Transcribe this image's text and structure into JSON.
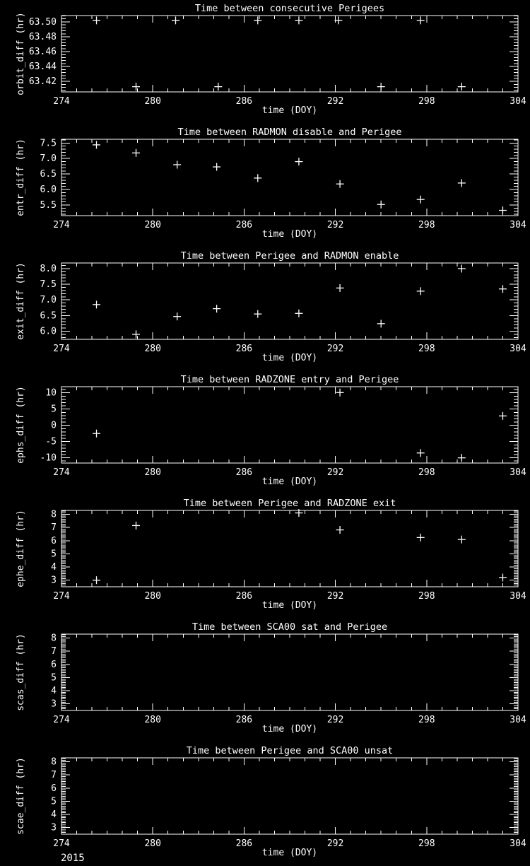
{
  "colors": {
    "background": "#000000",
    "foreground": "#ffffff"
  },
  "footer": {
    "text": "2015"
  },
  "chart_data": [
    {
      "type": "scatter",
      "name": "orbit-diff-plot",
      "marker": "plus",
      "title": "Time between consecutive Perigees",
      "xlabel": "time (DOY)",
      "ylabel": "orbit_diff (hr)",
      "xlim": [
        274,
        304
      ],
      "x_major_ticks": [
        274,
        280,
        286,
        292,
        298,
        304
      ],
      "x_tick_labels": [
        "274",
        "280",
        "286",
        "292",
        "298",
        "304"
      ],
      "x_minor_step": 1,
      "ylim": [
        63.406,
        63.5085
      ],
      "y_major_ticks": [
        63.42,
        63.44,
        63.46,
        63.48,
        63.5
      ],
      "y_tick_labels": [
        "63.42",
        "63.44",
        "63.46",
        "63.48",
        "63.50"
      ],
      "y_minor_step": 0.004,
      "points": [
        [
          276.3,
          63.502
        ],
        [
          278.9,
          63.413
        ],
        [
          281.5,
          63.502
        ],
        [
          284.3,
          63.413
        ],
        [
          286.9,
          63.502
        ],
        [
          289.6,
          63.502
        ],
        [
          292.2,
          63.502
        ],
        [
          295.0,
          63.413
        ],
        [
          297.6,
          63.502
        ],
        [
          300.3,
          63.413
        ]
      ]
    },
    {
      "type": "scatter",
      "name": "entr-diff-plot",
      "marker": "plus",
      "title": "Time between RADMON disable and Perigee",
      "xlabel": "time (DOY)",
      "ylabel": "entr_diff (hr)",
      "xlim": [
        274,
        304
      ],
      "x_major_ticks": [
        274,
        280,
        286,
        292,
        298,
        304
      ],
      "x_tick_labels": [
        "274",
        "280",
        "286",
        "292",
        "298",
        "304"
      ],
      "x_minor_step": 1,
      "ylim": [
        5.16,
        7.62
      ],
      "y_major_ticks": [
        5.5,
        6.0,
        6.5,
        7.0,
        7.5
      ],
      "y_tick_labels": [
        "5.5",
        "6.0",
        "6.5",
        "7.0",
        "7.5"
      ],
      "y_minor_step": 0.1,
      "points": [
        [
          276.3,
          7.44
        ],
        [
          278.9,
          7.18
        ],
        [
          281.6,
          6.8
        ],
        [
          284.2,
          6.73
        ],
        [
          286.9,
          6.37
        ],
        [
          289.6,
          6.9
        ],
        [
          292.3,
          6.18
        ],
        [
          295.0,
          5.52
        ],
        [
          297.6,
          5.68
        ],
        [
          300.3,
          6.21
        ],
        [
          303.0,
          5.33
        ]
      ]
    },
    {
      "type": "scatter",
      "name": "exit-diff-plot",
      "marker": "plus",
      "title": "Time between Perigee and RADMON enable",
      "xlabel": "time (DOY)",
      "ylabel": "exit_diff (hr)",
      "xlim": [
        274,
        304
      ],
      "x_major_ticks": [
        274,
        280,
        286,
        292,
        298,
        304
      ],
      "x_tick_labels": [
        "274",
        "280",
        "286",
        "292",
        "298",
        "304"
      ],
      "x_minor_step": 1,
      "ylim": [
        5.74,
        8.18
      ],
      "y_major_ticks": [
        6.0,
        6.5,
        7.0,
        7.5,
        8.0
      ],
      "y_tick_labels": [
        "6.0",
        "6.5",
        "7.0",
        "7.5",
        "8.0"
      ],
      "y_minor_step": 0.1,
      "points": [
        [
          276.3,
          6.85
        ],
        [
          278.9,
          5.9
        ],
        [
          281.6,
          6.47
        ],
        [
          284.2,
          6.72
        ],
        [
          286.9,
          6.55
        ],
        [
          289.6,
          6.57
        ],
        [
          292.3,
          7.38
        ],
        [
          295.0,
          6.24
        ],
        [
          297.6,
          7.28
        ],
        [
          300.3,
          8.0
        ],
        [
          303.0,
          7.35
        ]
      ]
    },
    {
      "type": "scatter",
      "name": "ephs-diff-plot",
      "marker": "plus",
      "title": "Time between RADZONE entry and Perigee",
      "xlabel": "time (DOY)",
      "ylabel": "ephs_diff (hr)",
      "xlim": [
        274,
        304
      ],
      "x_major_ticks": [
        274,
        280,
        286,
        292,
        298,
        304
      ],
      "x_tick_labels": [
        "274",
        "280",
        "286",
        "292",
        "298",
        "304"
      ],
      "x_minor_step": 1,
      "ylim": [
        -11.6,
        11.9
      ],
      "y_major_ticks": [
        -10,
        -5,
        0,
        5,
        10
      ],
      "y_tick_labels": [
        "-10",
        "-5",
        "0",
        "5",
        "10"
      ],
      "y_minor_step": 1,
      "points": [
        [
          276.3,
          -2.5
        ],
        [
          292.3,
          10.1
        ],
        [
          297.6,
          -8.5
        ],
        [
          300.3,
          -10.0
        ],
        [
          303.0,
          2.9
        ]
      ]
    },
    {
      "type": "scatter",
      "name": "ephe-diff-plot",
      "marker": "plus",
      "title": "Time between Perigee and RADZONE exit",
      "xlabel": "time (DOY)",
      "ylabel": "ephe_diff (hr)",
      "xlim": [
        274,
        304
      ],
      "x_major_ticks": [
        274,
        280,
        286,
        292,
        298,
        304
      ],
      "x_tick_labels": [
        "274",
        "280",
        "286",
        "292",
        "298",
        "304"
      ],
      "x_minor_step": 1,
      "ylim": [
        2.5,
        8.3
      ],
      "y_major_ticks": [
        3,
        4,
        5,
        6,
        7,
        8
      ],
      "y_tick_labels": [
        "3",
        "4",
        "5",
        "6",
        "7",
        "8"
      ],
      "y_minor_step": 0.125,
      "points": [
        [
          276.3,
          3.0
        ],
        [
          278.9,
          7.15
        ],
        [
          289.6,
          8.11
        ],
        [
          292.3,
          6.82
        ],
        [
          297.6,
          6.24
        ],
        [
          300.3,
          6.09
        ],
        [
          303.0,
          3.2
        ]
      ]
    },
    {
      "type": "scatter",
      "name": "scas-diff-plot",
      "marker": "plus",
      "title": "Time between SCA00 sat and Perigee",
      "xlabel": "time (DOY)",
      "ylabel": "scas_diff (hr)",
      "xlim": [
        274,
        304
      ],
      "x_major_ticks": [
        274,
        280,
        286,
        292,
        298,
        304
      ],
      "x_tick_labels": [
        "274",
        "280",
        "286",
        "292",
        "298",
        "304"
      ],
      "x_minor_step": 1,
      "ylim": [
        2.5,
        8.3
      ],
      "y_major_ticks": [
        3,
        4,
        5,
        6,
        7,
        8
      ],
      "y_tick_labels": [
        "3",
        "4",
        "5",
        "6",
        "7",
        "8"
      ],
      "y_minor_step": 0.125,
      "points": []
    },
    {
      "type": "scatter",
      "name": "scae-diff-plot",
      "marker": "plus",
      "title": "Time between Perigee and SCA00 unsat",
      "xlabel": "time (DOY)",
      "ylabel": "scae_diff (hr)",
      "xlim": [
        274,
        304
      ],
      "x_major_ticks": [
        274,
        280,
        286,
        292,
        298,
        304
      ],
      "x_tick_labels": [
        "274",
        "280",
        "286",
        "292",
        "298",
        "304"
      ],
      "x_minor_step": 1,
      "ylim": [
        2.5,
        8.3
      ],
      "y_major_ticks": [
        3,
        4,
        5,
        6,
        7,
        8
      ],
      "y_tick_labels": [
        "3",
        "4",
        "5",
        "6",
        "7",
        "8"
      ],
      "y_minor_step": 0.125,
      "points": []
    }
  ]
}
